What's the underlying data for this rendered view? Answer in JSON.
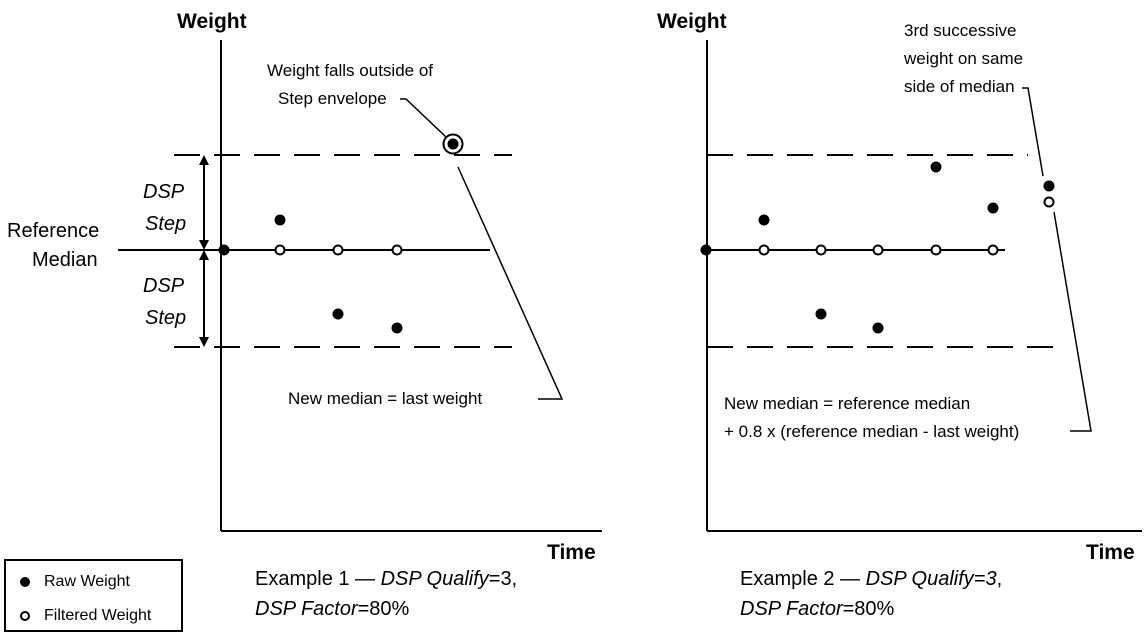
{
  "example1": {
    "y_axis_label": "Weight",
    "x_axis_label": "Time",
    "reference_label_line1": "Reference",
    "reference_label_line2": "Median",
    "step_upper_line1": "DSP",
    "step_upper_line2": "Step",
    "step_lower_line1": "DSP",
    "step_lower_line2": "Step",
    "callout_top_line1": "Weight falls outside of",
    "callout_top_line2": "Step envelope",
    "callout_bottom": "New median = last weight",
    "caption_line1_prefix": "Example 1 — ",
    "caption_line1_param": "DSP Qualify",
    "caption_line1_value": "=3,",
    "caption_line2_param": "DSP Factor",
    "caption_line2_value": "=80%"
  },
  "example2": {
    "y_axis_label": "Weight",
    "x_axis_label": "Time",
    "callout_top_line1": "3rd successive",
    "callout_top_line2": "weight on same",
    "callout_top_line3": "side of median",
    "callout_bottom_line1": "New median = reference median",
    "callout_bottom_line2": "+ 0.8 x (reference median - last weight)",
    "caption_line1_prefix": "Example 2 — ",
    "caption_line1_param": "DSP Qualify=3",
    "caption_line1_value": ",",
    "caption_line2_param": "DSP Factor",
    "caption_line2_value": "=80%"
  },
  "legend": {
    "raw_label": "Raw Weight",
    "filtered_label": "Filtered Weight"
  }
}
